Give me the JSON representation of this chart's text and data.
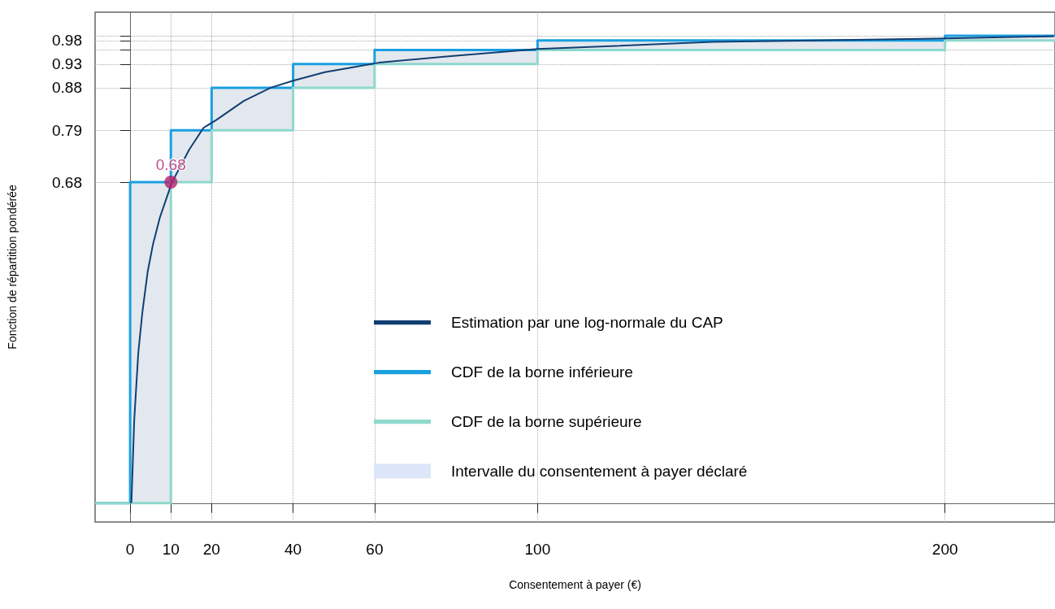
{
  "chart_data": {
    "type": "line",
    "xlabel": "Consentement à payer (€)",
    "ylabel": "Fonction de répartition pondérée",
    "xlim": [
      -8.6,
      227
    ],
    "xticks": [
      0,
      10,
      20,
      40,
      60,
      100,
      200
    ],
    "ylim": [
      -0.04,
      1.04
    ],
    "yticks": [
      0.68,
      0.79,
      0.88,
      0.93,
      {
        "value": 0.96,
        "label": null
      },
      0.98,
      {
        "value": 0.99,
        "label": null
      }
    ],
    "grid": true,
    "legend": "bottom",
    "line_style": "solid",
    "marker": "none",
    "series": [
      {
        "name": "Estimation par une log-normale du CAP",
        "color": "#123f73",
        "x": [
          0,
          0.33,
          1,
          2,
          3,
          4.3,
          5.6,
          7.3,
          9.6,
          10,
          14.5,
          18,
          21.2,
          27.9,
          34.5,
          40,
          47.8,
          54.4,
          61,
          77.6,
          100,
          143,
          197.5,
          226.7
        ],
        "values": [
          0,
          0.003,
          0.175,
          0.318,
          0.404,
          0.49,
          0.548,
          0.605,
          0.663,
          0.675,
          0.749,
          0.795,
          0.812,
          0.852,
          0.88,
          0.895,
          0.913,
          0.923,
          0.933,
          0.946,
          0.962,
          0.977,
          0.984,
          0.989
        ]
      },
      {
        "name": "CDF de la borne inférieure",
        "type": "step",
        "color": "#1a9fe0",
        "x": [
          -8.6,
          0,
          10,
          20,
          40,
          60,
          100,
          200,
          227
        ],
        "values": [
          0,
          0.68,
          0.79,
          0.88,
          0.93,
          0.96,
          0.98,
          0.99,
          0.99
        ]
      },
      {
        "name": "CDF de la borne supérieure",
        "type": "step",
        "color": "#8fd8cc",
        "x": [
          -8.6,
          10,
          20,
          40,
          60,
          100,
          200,
          227
        ],
        "values": [
          0,
          0.68,
          0.79,
          0.88,
          0.93,
          0.96,
          0.98,
          0.98
        ]
      },
      {
        "name": "Intervalle du consentement à payer déclaré",
        "type": "area",
        "color": "#dce6f8",
        "x": [
          0,
          10,
          20,
          40,
          60,
          100,
          200,
          227
        ],
        "values": [
          0.68,
          0.79,
          0.88,
          0.93,
          0.96,
          0.98,
          0.99,
          0.99
        ]
      },
      {
        "type": "scatter",
        "marker": "circle",
        "color": "#b0206a",
        "x": [
          10
        ],
        "values": [
          0.68
        ],
        "value_labels": [
          "0.68"
        ]
      }
    ]
  }
}
